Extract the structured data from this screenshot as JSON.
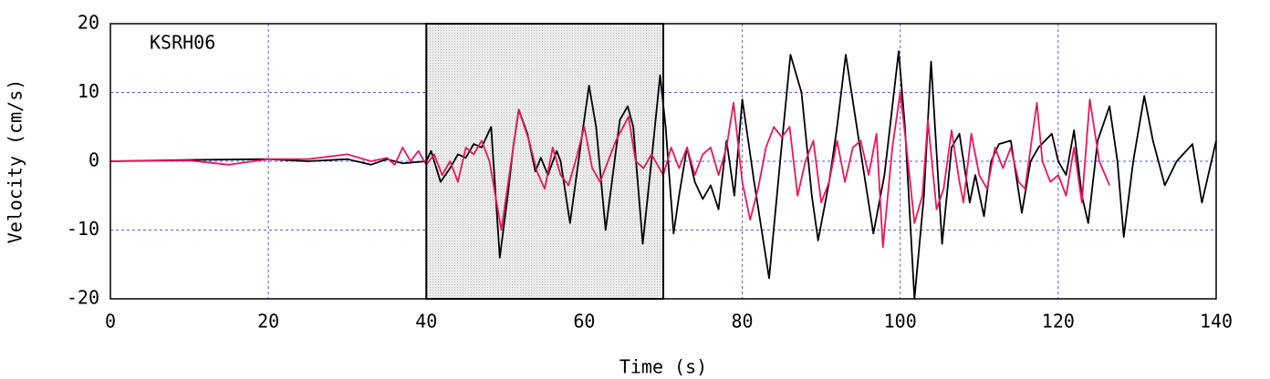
{
  "chart_data": {
    "type": "line",
    "annotation": "KSRH06",
    "xlabel": "Time (s)",
    "ylabel": "Velocity (cm/s)",
    "xlim": [
      0,
      140
    ],
    "xticks": [
      0,
      20,
      40,
      60,
      80,
      100,
      120,
      140
    ],
    "ylim": [
      -20,
      20
    ],
    "yticks": [
      -20,
      -10,
      0,
      10,
      20
    ],
    "grid": true,
    "highlight": [
      40,
      70
    ],
    "series": [
      {
        "color": "#000000",
        "x": [
          0,
          10,
          20,
          25,
          30,
          33,
          35,
          37,
          40,
          40.6,
          41.8,
          43,
          44,
          45,
          46,
          47,
          48.2,
          49.3,
          50.3,
          51,
          51.7,
          52.8,
          53.8,
          54.5,
          55.4,
          56.5,
          57,
          58.2,
          59.5,
          60.6,
          61.5,
          62.7,
          63.5,
          64.5,
          65.5,
          66.2,
          67.4,
          68.5,
          69.6,
          70.3,
          71.3,
          72,
          73,
          74,
          75,
          76,
          77,
          78,
          79,
          80,
          81.5,
          83.4,
          84.8,
          86.1,
          87.5,
          88.8,
          89.6,
          91,
          92,
          93.1,
          94.5,
          96.6,
          98,
          99,
          99.8,
          100.6,
          101.8,
          103,
          103.9,
          105.3,
          106.5,
          107.5,
          108.8,
          109.5,
          110.6,
          111.5,
          112.5,
          114,
          115.4,
          116.5,
          117.5,
          119.2,
          120,
          121,
          122,
          123,
          123.8,
          125,
          126.5,
          127.5,
          128.3,
          129.5,
          130.9,
          132,
          133.5,
          135,
          137,
          138.2,
          140
        ],
        "values": [
          0,
          0.2,
          0.3,
          0,
          0.3,
          -0.5,
          0.3,
          -0.3,
          0,
          1.5,
          -3,
          -1,
          1,
          0.5,
          2.5,
          2,
          5,
          -14,
          -5,
          2,
          7.5,
          4,
          -1.5,
          0.5,
          -2,
          1.5,
          0,
          -9,
          2,
          11,
          5,
          -10,
          -3,
          6,
          8,
          5,
          -12,
          0,
          12.5,
          5,
          -10.5,
          -5,
          2,
          -3,
          -5.5,
          -3.5,
          -7,
          3,
          -5,
          9,
          -3,
          -17,
          0,
          15.5,
          10,
          -5,
          -11.5,
          -3,
          5,
          15.5,
          5,
          -10.5,
          -2,
          8,
          16,
          5,
          -20,
          -5,
          14.5,
          -12,
          2,
          4,
          -6,
          -2,
          -8,
          0,
          2.5,
          3,
          -7.5,
          0,
          2,
          4,
          0,
          -2,
          4.5,
          -5,
          -9,
          3,
          8,
          0,
          -11,
          0,
          9.5,
          3,
          -3.5,
          0,
          2.5,
          -6,
          3
        ]
      },
      {
        "color": "#e8175d",
        "x": [
          0,
          10,
          15,
          20,
          25,
          30,
          33,
          35,
          36,
          37,
          38,
          39,
          40,
          41,
          42,
          43,
          44,
          45,
          46,
          47,
          48,
          49.5,
          50.5,
          51.7,
          53,
          54,
          55,
          56,
          57,
          58,
          59,
          60,
          61,
          62,
          63,
          64,
          65.6,
          66.5,
          67.5,
          68.5,
          70,
          71,
          72,
          73,
          74,
          75,
          76,
          77,
          78,
          78.9,
          80,
          81,
          82,
          83,
          84,
          85,
          86,
          87,
          88,
          89,
          90,
          91,
          92,
          93,
          94,
          95,
          96,
          97,
          97.8,
          99,
          100,
          100.8,
          101.8,
          102.8,
          103.5,
          104.6,
          105.5,
          106.5,
          107.5,
          108,
          109,
          110,
          111,
          112,
          113,
          114,
          115,
          115.8,
          117.3,
          118,
          119,
          120,
          121,
          122,
          123,
          124,
          125.2,
          126.5
        ],
        "values": [
          0,
          0.1,
          -0.5,
          0.3,
          0.3,
          1,
          0,
          0.5,
          -0.5,
          2,
          0,
          1.5,
          -0.5,
          1,
          -2,
          0,
          -3,
          2,
          1,
          3,
          0,
          -10,
          -2,
          7.5,
          3,
          -1.5,
          -4,
          2,
          -2,
          -3.5,
          0.5,
          5,
          -1,
          -3,
          0,
          3,
          6.5,
          0,
          -1,
          1,
          -2,
          2,
          -1,
          2,
          -2,
          1,
          2,
          -2,
          2,
          8.5,
          -3,
          -8.5,
          -4,
          2,
          5,
          3.5,
          5,
          -5,
          0,
          3,
          -6,
          -3,
          3,
          -3,
          2,
          3,
          -2,
          4,
          -12.5,
          2,
          10,
          2,
          -9,
          -5,
          6,
          -7,
          -4,
          4.5,
          -3,
          -6,
          4,
          -2,
          -4,
          2,
          -1,
          2,
          -3,
          -4,
          8.5,
          0,
          -3,
          -2,
          -5,
          2,
          -6,
          9,
          0,
          -3.5
        ]
      }
    ]
  }
}
